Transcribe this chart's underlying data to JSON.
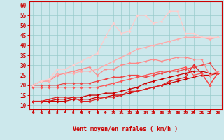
{
  "xlabel": "Vent moyen/en rafales ( km/h )",
  "xlim": [
    -0.5,
    23.5
  ],
  "ylim": [
    8,
    62
  ],
  "xticks": [
    0,
    1,
    2,
    3,
    4,
    5,
    6,
    7,
    8,
    9,
    10,
    11,
    12,
    13,
    14,
    15,
    16,
    17,
    18,
    19,
    20,
    21,
    22,
    23
  ],
  "yticks": [
    10,
    15,
    20,
    25,
    30,
    35,
    40,
    45,
    50,
    55,
    60
  ],
  "bg_color": "#cce8ec",
  "grid_color": "#99cccc",
  "series": [
    {
      "x": [
        0,
        1,
        2,
        3,
        4,
        5,
        6,
        7,
        8,
        9,
        10,
        11,
        12,
        13,
        14,
        15,
        16,
        17,
        18,
        19,
        20,
        21,
        22,
        23
      ],
      "y": [
        12,
        12,
        12,
        12,
        12,
        13,
        13,
        13,
        14,
        14,
        15,
        15,
        16,
        17,
        18,
        19,
        20,
        21,
        22,
        23,
        24,
        25,
        25,
        26
      ],
      "color": "#cc0000",
      "lw": 0.9,
      "ms": 2.0
    },
    {
      "x": [
        0,
        1,
        2,
        3,
        4,
        5,
        6,
        7,
        8,
        9,
        10,
        11,
        12,
        13,
        14,
        15,
        16,
        17,
        18,
        19,
        20,
        21,
        22,
        23
      ],
      "y": [
        12,
        12,
        12,
        13,
        13,
        14,
        14,
        15,
        15,
        16,
        16,
        17,
        18,
        19,
        21,
        22,
        23,
        24,
        25,
        26,
        27,
        27,
        26,
        26
      ],
      "color": "#cc0000",
      "lw": 0.9,
      "ms": 2.0
    },
    {
      "x": [
        0,
        1,
        2,
        3,
        4,
        5,
        6,
        7,
        8,
        9,
        10,
        11,
        12,
        13,
        14,
        15,
        16,
        17,
        18,
        19,
        20,
        21,
        22,
        23
      ],
      "y": [
        12,
        12,
        13,
        14,
        14,
        14,
        12,
        12,
        13,
        14,
        14,
        15,
        17,
        17,
        18,
        19,
        20,
        22,
        23,
        24,
        30,
        26,
        20,
        26
      ],
      "color": "#dd2222",
      "lw": 0.9,
      "ms": 2.0
    },
    {
      "x": [
        0,
        1,
        2,
        3,
        4,
        5,
        6,
        7,
        8,
        9,
        10,
        11,
        12,
        13,
        14,
        15,
        16,
        17,
        18,
        19,
        20,
        21,
        22,
        23
      ],
      "y": [
        19,
        19,
        19,
        19,
        19,
        19,
        19,
        19,
        19,
        20,
        21,
        22,
        23,
        24,
        25,
        26,
        27,
        27,
        28,
        29,
        25,
        26,
        20,
        26
      ],
      "color": "#ff5555",
      "lw": 0.9,
      "ms": 2.0
    },
    {
      "x": [
        0,
        1,
        2,
        3,
        4,
        5,
        6,
        7,
        8,
        9,
        10,
        11,
        12,
        13,
        14,
        15,
        16,
        17,
        18,
        19,
        20,
        21,
        22,
        23
      ],
      "y": [
        20,
        20,
        20,
        20,
        21,
        21,
        21,
        21,
        22,
        23,
        24,
        24,
        25,
        25,
        24,
        25,
        26,
        27,
        27,
        28,
        29,
        30,
        31,
        26
      ],
      "color": "#ee4444",
      "lw": 0.9,
      "ms": 2.0
    },
    {
      "x": [
        0,
        1,
        2,
        3,
        4,
        5,
        6,
        7,
        8,
        9,
        10,
        11,
        12,
        13,
        14,
        15,
        16,
        17,
        18,
        19,
        20,
        21,
        22,
        23
      ],
      "y": [
        20,
        22,
        22,
        25,
        26,
        27,
        28,
        29,
        25,
        28,
        28,
        30,
        31,
        31,
        32,
        33,
        32,
        33,
        34,
        34,
        33,
        33,
        25,
        27
      ],
      "color": "#ff8888",
      "lw": 0.9,
      "ms": 2.0
    },
    {
      "x": [
        0,
        1,
        2,
        3,
        4,
        5,
        6,
        7,
        8,
        9,
        10,
        11,
        12,
        13,
        14,
        15,
        16,
        17,
        18,
        19,
        20,
        21,
        22,
        23
      ],
      "y": [
        20,
        22,
        22,
        26,
        26,
        26,
        27,
        27,
        28,
        30,
        32,
        34,
        36,
        38,
        39,
        40,
        41,
        42,
        43,
        44,
        44,
        44,
        43,
        44
      ],
      "color": "#ffaaaa",
      "lw": 0.9,
      "ms": 2.0
    },
    {
      "x": [
        0,
        1,
        2,
        3,
        4,
        5,
        6,
        7,
        8,
        9,
        10,
        11,
        12,
        13,
        14,
        15,
        16,
        17,
        18,
        19,
        20,
        21,
        22,
        23
      ],
      "y": [
        20,
        22,
        23,
        28,
        28,
        30,
        32,
        34,
        36,
        44,
        51,
        46,
        47,
        55,
        55,
        51,
        52,
        57,
        57,
        46,
        46,
        44,
        44,
        44
      ],
      "color": "#ffcccc",
      "lw": 0.9,
      "ms": 2.0
    }
  ],
  "red": "#cc0000"
}
